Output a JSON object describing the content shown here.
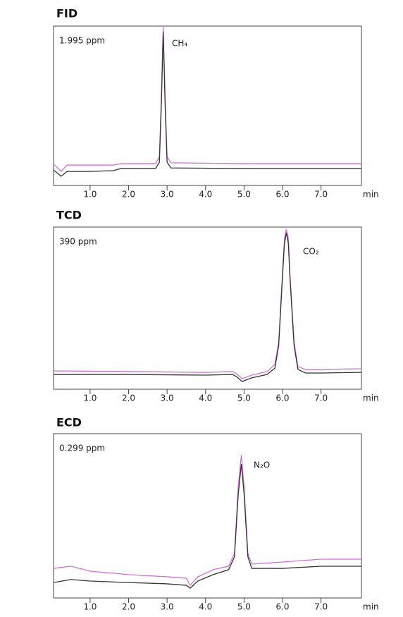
{
  "chart_data": [
    {
      "type": "line",
      "title": "FID",
      "concentration": "1.995 ppm",
      "peak_label": "CH₄",
      "x_label": "min",
      "x": [
        0.05,
        0.25,
        0.4,
        1.0,
        1.6,
        1.8,
        2.7,
        2.8,
        2.85,
        2.9,
        2.95,
        3.0,
        3.1,
        5.0,
        8.05
      ],
      "series": [
        {
          "color": "#d070d8",
          "values": [
            13.3,
            8.8,
            12.8,
            12.8,
            12.8,
            13.7,
            13.7,
            18,
            54,
            100,
            54,
            18,
            14.2,
            13.7,
            13.7
          ]
        },
        {
          "color": "#333333",
          "values": [
            9.7,
            5.8,
            8.8,
            8.8,
            9.3,
            10.6,
            10.6,
            14.6,
            50,
            96.5,
            50,
            14.6,
            11,
            10.6,
            10.6
          ]
        }
      ],
      "xlim": [
        0.05,
        8.05
      ],
      "ylim": [
        0,
        100
      ],
      "xticks": [
        {
          "value": 1,
          "label": "1.0"
        },
        {
          "value": 2,
          "label": "2.0"
        },
        {
          "value": 3,
          "label": "3.0"
        },
        {
          "value": 4,
          "label": "4.0"
        },
        {
          "value": 5,
          "label": "5.0"
        },
        {
          "value": 6,
          "label": "6.0"
        },
        {
          "value": 7,
          "label": "7.0"
        }
      ]
    },
    {
      "type": "line",
      "title": "TCD",
      "concentration": "390 ppm",
      "peak_label": "CO₂",
      "x_label": "min",
      "x": [
        0.05,
        2.0,
        4.0,
        4.7,
        4.8,
        4.95,
        5.2,
        5.6,
        5.8,
        5.9,
        6.0,
        6.05,
        6.1,
        6.15,
        6.2,
        6.3,
        6.4,
        6.6,
        7.0,
        8.05
      ],
      "series": [
        {
          "color": "#d070d8",
          "values": [
            11.3,
            10.9,
            10.4,
            10.9,
            9.6,
            6.5,
            8.7,
            10.9,
            15.2,
            29,
            72.6,
            93,
            98.7,
            93,
            68,
            29,
            13.9,
            12.2,
            12.2,
            12.6
          ]
        },
        {
          "color": "#333333",
          "values": [
            9.1,
            9.1,
            8.7,
            9.1,
            7.8,
            4.8,
            7,
            9.1,
            13,
            27,
            70,
            90,
            96.5,
            90,
            66,
            27,
            12.2,
            10,
            10,
            10.4
          ]
        }
      ],
      "xlim": [
        0.05,
        8.05
      ],
      "ylim": [
        0,
        100
      ],
      "xticks": [
        {
          "value": 1,
          "label": "1.0"
        },
        {
          "value": 2,
          "label": "2.0"
        },
        {
          "value": 3,
          "label": "3.0"
        },
        {
          "value": 4,
          "label": "4.0"
        },
        {
          "value": 5,
          "label": "5.0"
        },
        {
          "value": 6,
          "label": "6.0"
        },
        {
          "value": 7,
          "label": "7.0"
        }
      ]
    },
    {
      "type": "line",
      "title": "ECD",
      "concentration": "0.299 ppm",
      "peak_label": "N₂O",
      "x_label": "min",
      "x": [
        0.05,
        0.5,
        1.0,
        2.0,
        3.0,
        3.5,
        3.6,
        3.8,
        4.2,
        4.6,
        4.75,
        4.85,
        4.93,
        5.0,
        5.1,
        5.2,
        6.0,
        7.0,
        8.05
      ],
      "series": [
        {
          "color": "#d070d8",
          "values": [
            18,
            19.3,
            16.3,
            14.2,
            12.9,
            12,
            7.7,
            12.9,
            17.2,
            19.3,
            27,
            67.8,
            87.1,
            67.8,
            27,
            20.6,
            21.9,
            23.6,
            23.6
          ]
        },
        {
          "color": "#333333",
          "values": [
            9.4,
            11.2,
            10.3,
            9.4,
            8.6,
            7.7,
            6,
            10.3,
            14.2,
            17.2,
            25,
            63.5,
            81.5,
            63.5,
            25,
            18,
            18,
            19.3,
            19.3
          ]
        }
      ],
      "xlim": [
        0.05,
        8.05
      ],
      "ylim": [
        0,
        100
      ],
      "xticks": [
        {
          "value": 1,
          "label": "1.0"
        },
        {
          "value": 2,
          "label": "2.0"
        },
        {
          "value": 3,
          "label": "3.0"
        },
        {
          "value": 4,
          "label": "4.0"
        },
        {
          "value": 5,
          "label": "5.0"
        },
        {
          "value": 6,
          "label": "6.0"
        },
        {
          "value": 7,
          "label": "7.0"
        }
      ]
    }
  ]
}
